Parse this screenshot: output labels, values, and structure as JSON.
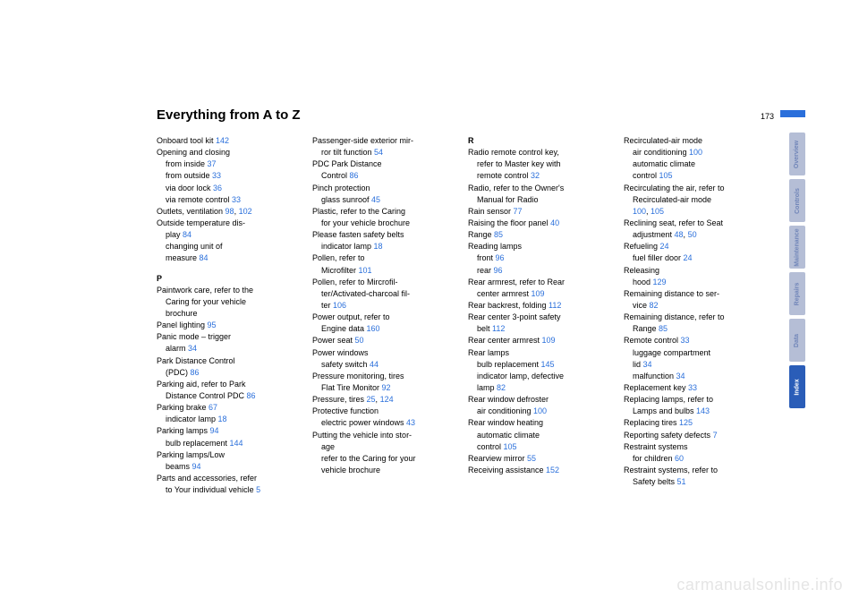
{
  "pageTitle": "Everything from A to Z",
  "pageNumber": "173",
  "watermark": "carmanualsonline.info",
  "tabs": [
    {
      "label": "Overview",
      "active": false
    },
    {
      "label": "Controls",
      "active": false
    },
    {
      "label": "Maintenance",
      "active": false
    },
    {
      "label": "Repairs",
      "active": false
    },
    {
      "label": "Data",
      "active": false
    },
    {
      "label": "Index",
      "active": true
    }
  ],
  "columns": [
    [
      {
        "t": "Onboard tool kit ",
        "r": "142"
      },
      {
        "t": "Opening and closing"
      },
      {
        "t": "from inside ",
        "r": "37",
        "sub": true
      },
      {
        "t": "from outside ",
        "r": "33",
        "sub": true
      },
      {
        "t": "via door lock ",
        "r": "36",
        "sub": true
      },
      {
        "t": "via remote control ",
        "r": "33",
        "sub": true
      },
      {
        "t": "Outlets, ventilation ",
        "r": "98",
        "r2": "102"
      },
      {
        "t": "Outside temperature dis-"
      },
      {
        "t": "play ",
        "r": "84",
        "sub": true
      },
      {
        "t": "changing unit of",
        "sub": true
      },
      {
        "t": "measure ",
        "r": "84",
        "sub": true
      },
      {
        "letter": "P"
      },
      {
        "t": "Paintwork care, refer to the"
      },
      {
        "t": "Caring for your vehicle",
        "sub": true
      },
      {
        "t": "brochure",
        "sub": true
      },
      {
        "t": "Panel lighting ",
        "r": "95"
      },
      {
        "t": "Panic mode – trigger"
      },
      {
        "t": "alarm ",
        "r": "34",
        "sub": true
      },
      {
        "t": "Park Distance Control"
      },
      {
        "t": "(PDC) ",
        "r": "86",
        "sub": true
      },
      {
        "t": "Parking aid, refer to Park"
      },
      {
        "t": "Distance Control PDC ",
        "r": "86",
        "sub": true
      },
      {
        "t": "Parking brake ",
        "r": "67"
      },
      {
        "t": "indicator lamp ",
        "r": "18",
        "sub": true
      },
      {
        "t": "Parking lamps ",
        "r": "94"
      },
      {
        "t": "bulb replacement ",
        "r": "144",
        "sub": true
      },
      {
        "t": "Parking lamps/Low"
      },
      {
        "t": "beams ",
        "r": "94",
        "sub": true
      },
      {
        "t": "Parts and accessories, refer"
      },
      {
        "t": "to Your individual vehicle ",
        "r": "5",
        "sub": true
      }
    ],
    [
      {
        "t": "Passenger-side exterior mir-"
      },
      {
        "t": "ror tilt function ",
        "r": "54",
        "sub": true
      },
      {
        "t": "PDC Park Distance"
      },
      {
        "t": "Control ",
        "r": "86",
        "sub": true
      },
      {
        "t": "Pinch protection"
      },
      {
        "t": "glass sunroof ",
        "r": "45",
        "sub": true
      },
      {
        "t": "Plastic, refer to the Caring"
      },
      {
        "t": "for your vehicle brochure",
        "sub": true
      },
      {
        "t": "Please fasten safety belts"
      },
      {
        "t": "indicator lamp ",
        "r": "18",
        "sub": true
      },
      {
        "t": "Pollen, refer to"
      },
      {
        "t": "Microfilter ",
        "r": "101",
        "sub": true
      },
      {
        "t": "Pollen, refer to Mircrofil-"
      },
      {
        "t": "ter/Activated-charcoal fil-",
        "sub": true
      },
      {
        "t": "ter ",
        "r": "106",
        "sub": true
      },
      {
        "t": "Power output, refer to"
      },
      {
        "t": "Engine data ",
        "r": "160",
        "sub": true
      },
      {
        "t": "Power seat ",
        "r": "50"
      },
      {
        "t": "Power windows"
      },
      {
        "t": "safety switch ",
        "r": "44",
        "sub": true
      },
      {
        "t": "Pressure monitoring, tires"
      },
      {
        "t": "Flat Tire Monitor ",
        "r": "92",
        "sub": true
      },
      {
        "t": "Pressure, tires ",
        "r": "25",
        "r2": "124"
      },
      {
        "t": "Protective function"
      },
      {
        "t": "electric power windows ",
        "r": "43",
        "sub": true
      },
      {
        "t": "Putting the vehicle into stor-"
      },
      {
        "t": "age",
        "sub": true
      },
      {
        "t": "refer to the Caring for your",
        "sub": true
      },
      {
        "t": "vehicle brochure",
        "sub": true
      }
    ],
    [
      {
        "letter": "R",
        "first": true
      },
      {
        "t": "Radio remote control key,"
      },
      {
        "t": "refer to Master key with",
        "sub": true
      },
      {
        "t": "remote control ",
        "r": "32",
        "sub": true
      },
      {
        "t": "Radio, refer to the Owner's"
      },
      {
        "t": "Manual for Radio",
        "sub": true
      },
      {
        "t": "Rain sensor ",
        "r": "77"
      },
      {
        "t": "Raising the floor panel ",
        "r": "40"
      },
      {
        "t": "Range ",
        "r": "85"
      },
      {
        "t": "Reading lamps"
      },
      {
        "t": "front ",
        "r": "96",
        "sub": true
      },
      {
        "t": "rear ",
        "r": "96",
        "sub": true
      },
      {
        "t": "Rear armrest, refer to Rear"
      },
      {
        "t": "center armrest ",
        "r": "109",
        "sub": true
      },
      {
        "t": "Rear backrest, folding ",
        "r": "112"
      },
      {
        "t": "Rear center 3-point safety"
      },
      {
        "t": "belt ",
        "r": "112",
        "sub": true
      },
      {
        "t": "Rear center armrest ",
        "r": "109"
      },
      {
        "t": "Rear lamps"
      },
      {
        "t": "bulb replacement ",
        "r": "145",
        "sub": true
      },
      {
        "t": "indicator lamp, defective",
        "sub": true
      },
      {
        "t": "lamp ",
        "r": "82",
        "sub": true
      },
      {
        "t": "Rear window defroster"
      },
      {
        "t": "air conditioning ",
        "r": "100",
        "sub": true
      },
      {
        "t": "Rear window heating"
      },
      {
        "t": "automatic climate",
        "sub": true
      },
      {
        "t": "control ",
        "r": "105",
        "sub": true
      },
      {
        "t": "Rearview mirror ",
        "r": "55"
      },
      {
        "t": "Receiving assistance ",
        "r": "152"
      }
    ],
    [
      {
        "t": "Recirculated-air mode"
      },
      {
        "t": "air conditioning ",
        "r": "100",
        "sub": true
      },
      {
        "t": "automatic climate",
        "sub": true
      },
      {
        "t": "control ",
        "r": "105",
        "sub": true
      },
      {
        "t": "Recirculating the air, refer to"
      },
      {
        "t": "Recirculated-air mode",
        "sub": true
      },
      {
        "t": "",
        "r": "100",
        "r2": "105",
        "sub": true
      },
      {
        "t": "Reclining seat, refer to Seat"
      },
      {
        "t": "adjustment ",
        "r": "48",
        "r2": "50",
        "sub": true
      },
      {
        "t": "Refueling ",
        "r": "24"
      },
      {
        "t": "fuel filler door ",
        "r": "24",
        "sub": true
      },
      {
        "t": "Releasing"
      },
      {
        "t": "hood ",
        "r": "129",
        "sub": true
      },
      {
        "t": "Remaining distance to ser-"
      },
      {
        "t": "vice ",
        "r": "82",
        "sub": true
      },
      {
        "t": "Remaining distance, refer to"
      },
      {
        "t": "Range ",
        "r": "85",
        "sub": true
      },
      {
        "t": "Remote control ",
        "r": "33"
      },
      {
        "t": "luggage compartment",
        "sub": true
      },
      {
        "t": "lid ",
        "r": "34",
        "sub": true
      },
      {
        "t": "malfunction ",
        "r": "34",
        "sub": true
      },
      {
        "t": "Replacement key ",
        "r": "33"
      },
      {
        "t": "Replacing lamps, refer to"
      },
      {
        "t": "Lamps and bulbs ",
        "r": "143",
        "sub": true
      },
      {
        "t": "Replacing tires ",
        "r": "125"
      },
      {
        "t": "Reporting safety defects ",
        "r": "7"
      },
      {
        "t": "Restraint systems"
      },
      {
        "t": "for children ",
        "r": "60",
        "sub": true
      },
      {
        "t": "Restraint systems, refer to"
      },
      {
        "t": "Safety belts ",
        "r": "51",
        "sub": true
      }
    ]
  ]
}
